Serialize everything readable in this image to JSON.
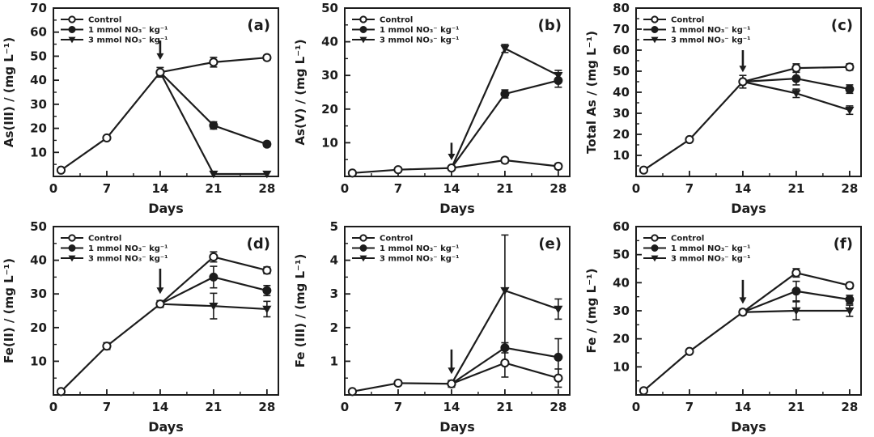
{
  "figure": {
    "background": "#ffffff",
    "ink_color": "#1c1c1c",
    "open_marker_fill": "#ffffff",
    "xlabel": "Days",
    "xlim": [
      0,
      29.5
    ],
    "xticks": [
      0,
      7,
      14,
      21,
      28
    ],
    "legend": [
      {
        "key": "control",
        "label": "Control",
        "marker": "open-circle"
      },
      {
        "key": "nitrate-1mmol",
        "label": "1 mmol NO₃⁻ kg⁻¹",
        "marker": "filled-circle"
      },
      {
        "key": "nitrate-3mmol",
        "label": "3 mmol NO₃⁻ kg⁻¹",
        "marker": "filled-triangle-down"
      }
    ]
  },
  "chart_data": [
    {
      "type": "line",
      "panel_label": "(a)",
      "ylabel": "As(III) / (mg L⁻¹)",
      "xlabel": "Days",
      "xlim": [
        0,
        29.5
      ],
      "xticks": [
        0,
        7,
        14,
        21,
        28
      ],
      "ylim": [
        0,
        70
      ],
      "yticks": [
        10,
        20,
        30,
        40,
        50,
        60,
        70
      ],
      "arrow": {
        "x": 14,
        "y_from": 56.5,
        "y_to": 48.5
      },
      "series": [
        {
          "key": "control",
          "name": "Control",
          "marker": "open-circle",
          "hide_first_marker": false,
          "x": [
            1,
            7,
            14,
            21,
            28
          ],
          "y": [
            2.6,
            16,
            43.3,
            47.5,
            49.4
          ],
          "err": [
            0,
            0,
            2,
            2,
            1
          ]
        },
        {
          "key": "nitrate-1mmol",
          "name": "1 mmol NO₃⁻ kg⁻¹",
          "marker": "filled-circle",
          "hide_first_marker": true,
          "x": [
            14,
            21,
            28
          ],
          "y": [
            43.3,
            21.2,
            13.4
          ],
          "err": [
            0,
            1.5,
            1
          ]
        },
        {
          "key": "nitrate-3mmol",
          "name": "3 mmol NO₃⁻ kg⁻¹",
          "marker": "filled-triangle-down",
          "hide_first_marker": true,
          "x": [
            14,
            21,
            28
          ],
          "y": [
            43.3,
            1,
            1
          ],
          "err": [
            0,
            0,
            0
          ]
        }
      ]
    },
    {
      "type": "line",
      "panel_label": "(b)",
      "ylabel": "As(V) / (mg L⁻¹)",
      "xlabel": "Days",
      "xlim": [
        0,
        29.5
      ],
      "xticks": [
        0,
        7,
        14,
        21,
        28
      ],
      "ylim": [
        0,
        50
      ],
      "yticks": [
        10,
        20,
        30,
        40,
        50
      ],
      "arrow": {
        "x": 14,
        "y_from": 10,
        "y_to": 4.8
      },
      "series": [
        {
          "key": "control",
          "name": "Control",
          "marker": "open-circle",
          "hide_first_marker": false,
          "x": [
            1,
            7,
            14,
            21,
            28
          ],
          "y": [
            1,
            2,
            2.5,
            4.8,
            3
          ],
          "err": [
            0,
            0,
            0.6,
            0.8,
            0.8
          ]
        },
        {
          "key": "nitrate-1mmol",
          "name": "1 mmol NO₃⁻ kg⁻¹",
          "marker": "filled-circle",
          "hide_first_marker": true,
          "x": [
            14,
            21,
            28
          ],
          "y": [
            2.5,
            24.5,
            28.5
          ],
          "err": [
            0,
            1.2,
            2
          ]
        },
        {
          "key": "nitrate-3mmol",
          "name": "3 mmol NO₃⁻ kg⁻¹",
          "marker": "filled-triangle-down",
          "hide_first_marker": true,
          "x": [
            14,
            21,
            28
          ],
          "y": [
            2.5,
            38,
            30
          ],
          "err": [
            0,
            1.2,
            1.5
          ]
        }
      ]
    },
    {
      "type": "line",
      "panel_label": "(c)",
      "ylabel": "Total As / (mg L⁻¹)",
      "xlabel": "Days",
      "xlim": [
        0,
        29.5
      ],
      "xticks": [
        0,
        7,
        14,
        21,
        28
      ],
      "ylim": [
        0,
        80
      ],
      "yticks": [
        10,
        20,
        30,
        40,
        50,
        60,
        70,
        80
      ],
      "arrow": {
        "x": 14,
        "y_from": 60,
        "y_to": 49.5
      },
      "series": [
        {
          "key": "control",
          "name": "Control",
          "marker": "open-circle",
          "hide_first_marker": false,
          "x": [
            1,
            7,
            14,
            21,
            28
          ],
          "y": [
            3,
            17.5,
            45,
            51.5,
            52
          ],
          "err": [
            0,
            0,
            3,
            2,
            1.5
          ]
        },
        {
          "key": "nitrate-1mmol",
          "name": "1 mmol NO₃⁻ kg⁻¹",
          "marker": "filled-circle",
          "hide_first_marker": true,
          "x": [
            14,
            21,
            28
          ],
          "y": [
            45,
            46.5,
            41.5
          ],
          "err": [
            0,
            3,
            2
          ]
        },
        {
          "key": "nitrate-3mmol",
          "name": "3 mmol NO₃⁻ kg⁻¹",
          "marker": "filled-triangle-down",
          "hide_first_marker": true,
          "x": [
            14,
            21,
            28
          ],
          "y": [
            45,
            39.5,
            31.5
          ],
          "err": [
            0,
            2,
            2
          ]
        }
      ]
    },
    {
      "type": "line",
      "panel_label": "(d)",
      "ylabel": "Fe(II) / (mg L⁻¹)",
      "xlabel": "Days",
      "xlim": [
        0,
        29.5
      ],
      "xticks": [
        0,
        7,
        14,
        21,
        28
      ],
      "ylim": [
        0,
        50
      ],
      "yticks": [
        10,
        20,
        30,
        40,
        50
      ],
      "arrow": {
        "x": 14,
        "y_from": 37.5,
        "y_to": 30
      },
      "series": [
        {
          "key": "control",
          "name": "Control",
          "marker": "open-circle",
          "hide_first_marker": false,
          "x": [
            1,
            7,
            14,
            21,
            28
          ],
          "y": [
            1,
            14.5,
            27,
            41,
            37
          ],
          "err": [
            0,
            1,
            1,
            1.5,
            1
          ]
        },
        {
          "key": "nitrate-1mmol",
          "name": "1 mmol NO₃⁻ kg⁻¹",
          "marker": "filled-circle",
          "hide_first_marker": true,
          "x": [
            14,
            21,
            28
          ],
          "y": [
            27,
            35,
            31
          ],
          "err": [
            0,
            3.2,
            1.5
          ]
        },
        {
          "key": "nitrate-3mmol",
          "name": "3 mmol NO₃⁻ kg⁻¹",
          "marker": "filled-triangle-down",
          "hide_first_marker": true,
          "x": [
            14,
            21,
            28
          ],
          "y": [
            27,
            26.4,
            25.5
          ],
          "err": [
            0,
            3.8,
            2.3
          ]
        }
      ]
    },
    {
      "type": "line",
      "panel_label": "(e)",
      "ylabel": "Fe (III) / (mg L⁻¹)",
      "xlabel": "Days",
      "xlim": [
        0,
        29.5
      ],
      "xticks": [
        0,
        7,
        14,
        21,
        28
      ],
      "ylim": [
        0,
        5
      ],
      "yticks": [
        1,
        2,
        3,
        4,
        5
      ],
      "arrow": {
        "x": 14,
        "y_from": 1.35,
        "y_to": 0.62
      },
      "series": [
        {
          "key": "control",
          "name": "Control",
          "marker": "open-circle",
          "hide_first_marker": false,
          "x": [
            1,
            7,
            14,
            21,
            28
          ],
          "y": [
            0.1,
            0.35,
            0.33,
            0.95,
            0.5
          ],
          "err": [
            0,
            0.07,
            0.1,
            0.42,
            0.27
          ]
        },
        {
          "key": "nitrate-1mmol",
          "name": "1 mmol NO₃⁻ kg⁻¹",
          "marker": "filled-circle",
          "hide_first_marker": true,
          "x": [
            14,
            21,
            28
          ],
          "y": [
            0.33,
            1.4,
            1.12
          ],
          "err": [
            0,
            0.15,
            0.55
          ]
        },
        {
          "key": "nitrate-3mmol",
          "name": "3 mmol NO₃⁻ kg⁻¹",
          "marker": "filled-triangle-down",
          "hide_first_marker": true,
          "x": [
            14,
            21,
            28
          ],
          "y": [
            0.33,
            3.1,
            2.55
          ],
          "err": [
            0,
            1.65,
            0.3
          ]
        }
      ]
    },
    {
      "type": "line",
      "panel_label": "(f)",
      "ylabel": "Fe / (mg L⁻¹)",
      "xlabel": "Days",
      "xlim": [
        0,
        29.5
      ],
      "xticks": [
        0,
        7,
        14,
        21,
        28
      ],
      "ylim": [
        0,
        60
      ],
      "yticks": [
        10,
        20,
        30,
        40,
        50,
        60
      ],
      "arrow": {
        "x": 14,
        "y_from": 41,
        "y_to": 32.5
      },
      "series": [
        {
          "key": "control",
          "name": "Control",
          "marker": "open-circle",
          "hide_first_marker": false,
          "x": [
            1,
            7,
            14,
            21,
            28
          ],
          "y": [
            1.5,
            15.5,
            29.5,
            43.5,
            39
          ],
          "err": [
            0,
            0.5,
            1,
            1.5,
            1
          ]
        },
        {
          "key": "nitrate-1mmol",
          "name": "1 mmol NO₃⁻ kg⁻¹",
          "marker": "filled-circle",
          "hide_first_marker": true,
          "x": [
            14,
            21,
            28
          ],
          "y": [
            29.5,
            37,
            34
          ],
          "err": [
            0,
            3.5,
            1.5
          ]
        },
        {
          "key": "nitrate-3mmol",
          "name": "3 mmol NO₃⁻ kg⁻¹",
          "marker": "filled-triangle-down",
          "hide_first_marker": true,
          "x": [
            14,
            21,
            28
          ],
          "y": [
            29.5,
            30,
            30
          ],
          "err": [
            0,
            3.2,
            2
          ]
        }
      ]
    }
  ]
}
